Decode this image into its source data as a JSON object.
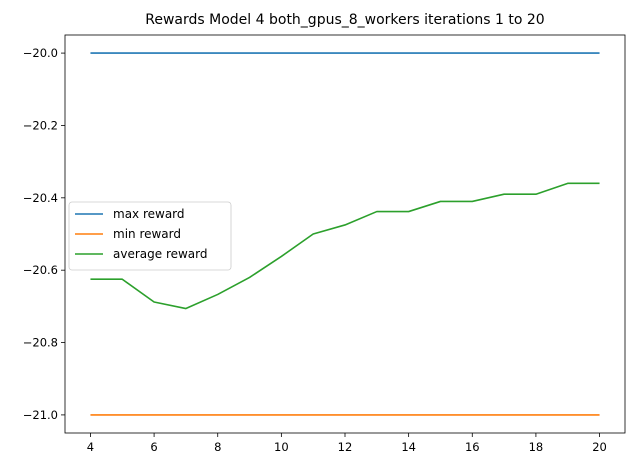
{
  "chart_data": {
    "type": "line",
    "title": "Rewards Model 4 both_gpus_8_workers iterations 1 to 20",
    "xlabel": "",
    "ylabel": "",
    "xlim": [
      3.2,
      20.8
    ],
    "ylim": [
      -21.05,
      -19.95
    ],
    "xticks": [
      4,
      6,
      8,
      10,
      12,
      14,
      16,
      18,
      20
    ],
    "yticks": [
      -20.0,
      -20.2,
      -20.4,
      -20.6,
      -20.8,
      -21.0
    ],
    "ytick_labels": [
      "−20.0",
      "−20.2",
      "−20.4",
      "−20.6",
      "−20.8",
      "−21.0"
    ],
    "x": [
      4,
      5,
      6,
      7,
      8,
      9,
      10,
      11,
      12,
      13,
      14,
      15,
      16,
      17,
      18,
      19,
      20
    ],
    "series": [
      {
        "name": "max reward",
        "color": "#1f77b4",
        "values": [
          -20.0,
          -20.0,
          -20.0,
          -20.0,
          -20.0,
          -20.0,
          -20.0,
          -20.0,
          -20.0,
          -20.0,
          -20.0,
          -20.0,
          -20.0,
          -20.0,
          -20.0,
          -20.0,
          -20.0
        ]
      },
      {
        "name": "min reward",
        "color": "#ff7f0e",
        "values": [
          -21.0,
          -21.0,
          -21.0,
          -21.0,
          -21.0,
          -21.0,
          -21.0,
          -21.0,
          -21.0,
          -21.0,
          -21.0,
          -21.0,
          -21.0,
          -21.0,
          -21.0,
          -21.0,
          -21.0
        ]
      },
      {
        "name": "average reward",
        "color": "#2ca02c",
        "values": [
          -20.625,
          -20.625,
          -20.688,
          -20.706,
          -20.667,
          -20.62,
          -20.562,
          -20.5,
          -20.475,
          -20.438,
          -20.438,
          -20.41,
          -20.41,
          -20.39,
          -20.39,
          -20.36,
          -20.36
        ]
      }
    ],
    "legend": {
      "position": "center-left"
    },
    "grid": false
  }
}
